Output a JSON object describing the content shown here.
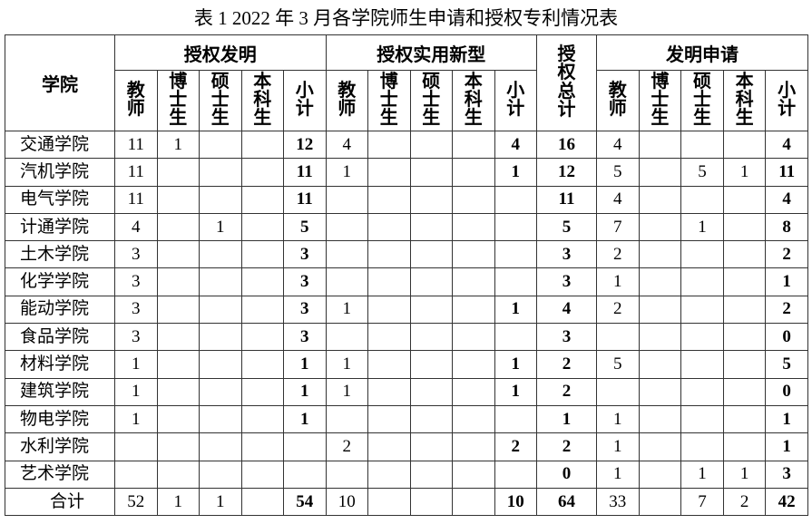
{
  "title": "表 1 2022 年 3 月各学院师生申请和授权专利情况表",
  "header": {
    "college": "学院",
    "groups": [
      "授权发明",
      "授权实用新型",
      "授权总计",
      "发明申请"
    ],
    "sub_columns": [
      "教师",
      "博士生",
      "硕士生",
      "本科生",
      "小计"
    ]
  },
  "rows": [
    {
      "name": "交通学院",
      "values": [
        "11",
        "1",
        "",
        "",
        "12",
        "4",
        "",
        "",
        "",
        "4",
        "16",
        "4",
        "",
        "",
        "",
        "4"
      ]
    },
    {
      "name": "汽机学院",
      "values": [
        "11",
        "",
        "",
        "",
        "11",
        "1",
        "",
        "",
        "",
        "1",
        "12",
        "5",
        "",
        "5",
        "1",
        "11"
      ]
    },
    {
      "name": "电气学院",
      "values": [
        "11",
        "",
        "",
        "",
        "11",
        "",
        "",
        "",
        "",
        "",
        "11",
        "4",
        "",
        "",
        "",
        "4"
      ]
    },
    {
      "name": "计通学院",
      "values": [
        "4",
        "",
        "1",
        "",
        "5",
        "",
        "",
        "",
        "",
        "",
        "5",
        "7",
        "",
        "1",
        "",
        "8"
      ]
    },
    {
      "name": "土木学院",
      "values": [
        "3",
        "",
        "",
        "",
        "3",
        "",
        "",
        "",
        "",
        "",
        "3",
        "2",
        "",
        "",
        "",
        "2"
      ]
    },
    {
      "name": "化学学院",
      "values": [
        "3",
        "",
        "",
        "",
        "3",
        "",
        "",
        "",
        "",
        "",
        "3",
        "1",
        "",
        "",
        "",
        "1"
      ]
    },
    {
      "name": "能动学院",
      "values": [
        "3",
        "",
        "",
        "",
        "3",
        "1",
        "",
        "",
        "",
        "1",
        "4",
        "2",
        "",
        "",
        "",
        "2"
      ]
    },
    {
      "name": "食品学院",
      "values": [
        "3",
        "",
        "",
        "",
        "3",
        "",
        "",
        "",
        "",
        "",
        "3",
        "",
        "",
        "",
        "",
        "0"
      ]
    },
    {
      "name": "材料学院",
      "values": [
        "1",
        "",
        "",
        "",
        "1",
        "1",
        "",
        "",
        "",
        "1",
        "2",
        "5",
        "",
        "",
        "",
        "5"
      ]
    },
    {
      "name": "建筑学院",
      "values": [
        "1",
        "",
        "",
        "",
        "1",
        "1",
        "",
        "",
        "",
        "1",
        "2",
        "",
        "",
        "",
        "",
        "0"
      ]
    },
    {
      "name": "物电学院",
      "values": [
        "1",
        "",
        "",
        "",
        "1",
        "",
        "",
        "",
        "",
        "",
        "1",
        "1",
        "",
        "",
        "",
        "1"
      ]
    },
    {
      "name": "水利学院",
      "values": [
        "",
        "",
        "",
        "",
        "",
        "2",
        "",
        "",
        "",
        "2",
        "2",
        "1",
        "",
        "",
        "",
        "1"
      ]
    },
    {
      "name": "艺术学院",
      "values": [
        "",
        "",
        "",
        "",
        "",
        "",
        "",
        "",
        "",
        "",
        "0",
        "1",
        "",
        "1",
        "1",
        "3"
      ]
    },
    {
      "name": "合计",
      "values": [
        "52",
        "1",
        "1",
        "",
        "54",
        "10",
        "",
        "",
        "",
        "10",
        "64",
        "33",
        "",
        "7",
        "2",
        "42"
      ]
    }
  ]
}
